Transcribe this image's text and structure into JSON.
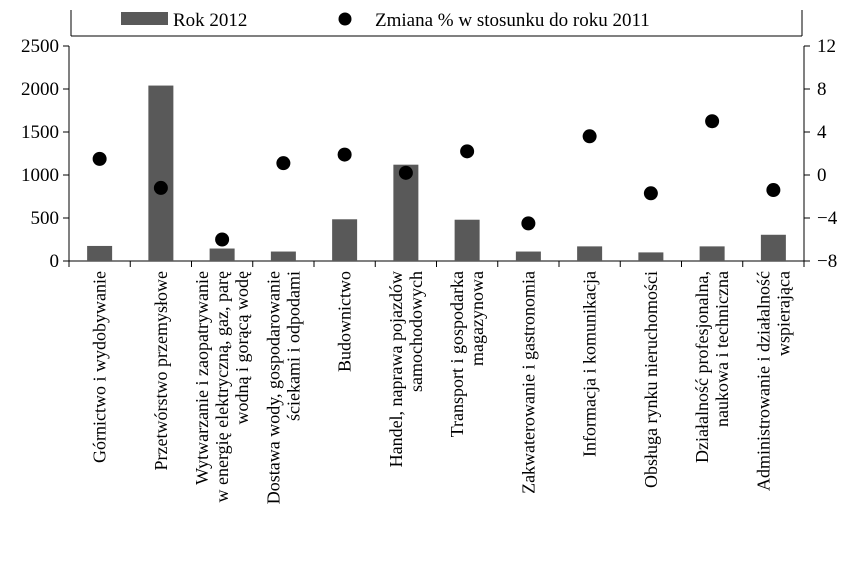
{
  "chart_data": {
    "type": "bar",
    "categories": [
      [
        "Górnictwo i wydobywanie"
      ],
      [
        "Przetwórstwo przemysłowe"
      ],
      [
        "Wytwarzanie i zaopatrywanie",
        "w energię elektryczną, gaz, parę",
        "wodną i gorącą wodę"
      ],
      [
        "Dostawa wody, gospodarowanie",
        "ściekami i odpodami"
      ],
      [
        "Budownictwo"
      ],
      [
        "Handel, naprawa pojazdów",
        "samochodowych"
      ],
      [
        "Transport i gospodarka",
        "magazynowa"
      ],
      [
        "Zakwaterowanie i gastronomia"
      ],
      [
        "Informacja i komunikacja"
      ],
      [
        "Obsługa rynku nieruchomości"
      ],
      [
        "Działalność profesjonalna,",
        "naukowa i techniczna"
      ],
      [
        "Administrowanie i działalność",
        "wspierająca"
      ]
    ],
    "series": [
      {
        "name": "Rok 2012",
        "type": "bar",
        "axis": "left",
        "color": "#595959",
        "values": [
          175,
          2040,
          145,
          110,
          485,
          1120,
          480,
          110,
          170,
          100,
          170,
          305
        ]
      },
      {
        "name": "Zmiana % w stosunku do roku 2011",
        "type": "scatter",
        "axis": "right",
        "color": "#000000",
        "values": [
          1.5,
          -1.2,
          -6.0,
          1.1,
          1.9,
          0.2,
          2.2,
          -4.5,
          3.6,
          -1.7,
          5.0,
          -1.4
        ]
      }
    ],
    "left_axis": {
      "ylim": [
        0,
        2500
      ],
      "ticks": [
        "0",
        "500",
        "1000",
        "1500",
        "2000",
        "2500"
      ]
    },
    "right_axis": {
      "ylim": [
        -8,
        12
      ],
      "ticks": [
        "−8",
        "−4",
        "0",
        "4",
        "8",
        "12"
      ]
    },
    "legend_position": "top",
    "grid": false,
    "title": "",
    "xlabel": "",
    "ylabel": ""
  }
}
